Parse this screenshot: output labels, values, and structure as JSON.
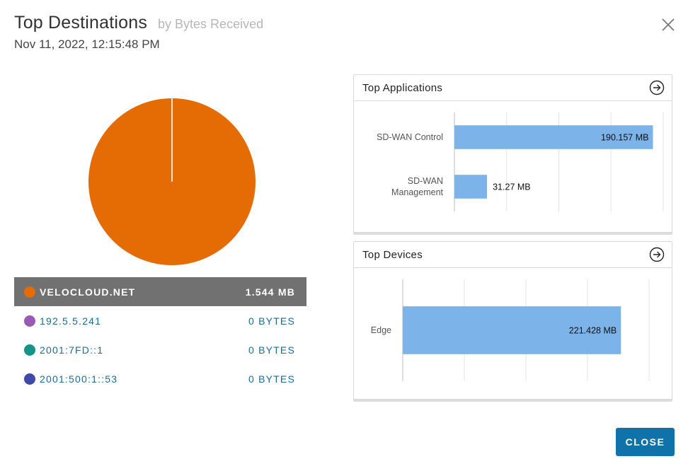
{
  "header": {
    "title": "Top Destinations",
    "subtitle": "by Bytes Received",
    "timestamp": "Nov 11, 2022, 12:15:48 PM"
  },
  "colors": {
    "pie_main": "#e56b04",
    "bar": "#7cb3e9",
    "active_row": "#717171",
    "link": "#1a6c9c",
    "button": "#0f72a8"
  },
  "legend": [
    {
      "name": "VELOCLOUD.NET",
      "value": "1.544 MB",
      "color": "#e56b04",
      "active": true
    },
    {
      "name": "192.5.5.241",
      "value": "0 BYTES",
      "color": "#9b59b6",
      "active": false
    },
    {
      "name": "2001:7FD::1",
      "value": "0 BYTES",
      "color": "#139487",
      "active": false
    },
    {
      "name": "2001:500:1::53",
      "value": "0 BYTES",
      "color": "#3f4aa8",
      "active": false
    }
  ],
  "pie_data": {
    "slices": [
      {
        "label": "VELOCLOUD.NET",
        "value": 1.544
      },
      {
        "label": "192.5.5.241",
        "value": 0
      },
      {
        "label": "2001:7FD::1",
        "value": 0
      },
      {
        "label": "2001:500:1::53",
        "value": 0
      }
    ]
  },
  "top_applications": {
    "title": "Top Applications",
    "icon": "arrow-right-circle-icon",
    "chart_data": {
      "type": "bar",
      "orientation": "horizontal",
      "categories": [
        [
          "SD-WAN Control"
        ],
        [
          "SD-WAN",
          "Management"
        ]
      ],
      "values": [
        190.157,
        31.27
      ],
      "labels": [
        "190.157 MB",
        "31.27 MB"
      ],
      "xlim": [
        0,
        200
      ]
    }
  },
  "top_devices": {
    "title": "Top Devices",
    "icon": "arrow-right-circle-icon",
    "chart_data": {
      "type": "bar",
      "orientation": "horizontal",
      "categories": [
        [
          "Edge"
        ]
      ],
      "values": [
        221.428
      ],
      "labels": [
        "221.428 MB"
      ],
      "xlim": [
        0,
        250
      ]
    }
  },
  "footer": {
    "close_label": "CLOSE"
  }
}
